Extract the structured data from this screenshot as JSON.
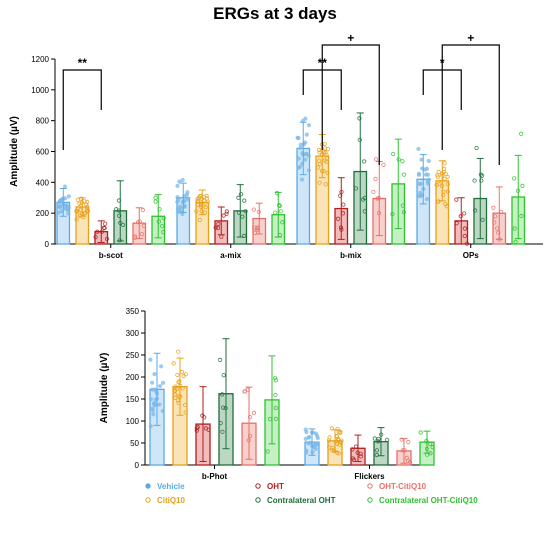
{
  "figure_title": "ERGs at 3 days",
  "chart_data": [
    {
      "type": "bar",
      "ylabel": "Amplitude (µV)",
      "ylim": [
        0,
        1200
      ],
      "yticks": [
        0,
        200,
        400,
        600,
        800,
        1000,
        1200
      ],
      "categories": [
        "b-scot",
        "a-mix",
        "b-mix",
        "OPs"
      ],
      "series": [
        {
          "name": "Vehicle",
          "values": [
            270,
            300,
            620,
            420
          ],
          "errors": [
            90,
            95,
            170,
            160
          ]
        },
        {
          "name": "CitiQ10",
          "values": [
            240,
            270,
            570,
            410
          ],
          "errors": [
            60,
            80,
            140,
            130
          ]
        },
        {
          "name": "OHT",
          "values": [
            80,
            150,
            230,
            150
          ],
          "errors": [
            70,
            90,
            200,
            150
          ]
        },
        {
          "name": "Contralateral OHT",
          "values": [
            215,
            215,
            470,
            295
          ],
          "errors": [
            195,
            170,
            380,
            260
          ]
        },
        {
          "name": "OHT-CitiQ10",
          "values": [
            135,
            165,
            295,
            200
          ],
          "errors": [
            100,
            100,
            240,
            170
          ]
        },
        {
          "name": "Contralateral OHT-CitiQ10",
          "values": [
            180,
            190,
            390,
            305
          ],
          "errors": [
            140,
            145,
            290,
            270
          ]
        }
      ],
      "annotations": [
        {
          "text": "**",
          "between": [
            "b-scot:Vehicle",
            "b-scot:OHT"
          ]
        },
        {
          "text": "**",
          "between": [
            "b-mix:Vehicle",
            "b-mix:OHT"
          ]
        },
        {
          "text": "+",
          "between": [
            "b-mix:CitiQ10",
            "b-mix:OHT-CitiQ10"
          ]
        },
        {
          "text": "*",
          "between": [
            "OPs:Vehicle",
            "OPs:OHT"
          ]
        },
        {
          "text": "+",
          "between": [
            "OPs:CitiQ10",
            "OPs:OHT-CitiQ10"
          ]
        }
      ]
    },
    {
      "type": "bar",
      "ylabel": "Amplitude (µV)",
      "ylim": [
        0,
        350
      ],
      "yticks": [
        0,
        50,
        100,
        150,
        200,
        250,
        300,
        350
      ],
      "categories": [
        "b-Phot",
        "Flickers"
      ],
      "series": [
        {
          "name": "Vehicle",
          "values": [
            172,
            52
          ],
          "errors": [
            82,
            30
          ]
        },
        {
          "name": "CitiQ10",
          "values": [
            178,
            55
          ],
          "errors": [
            65,
            25
          ]
        },
        {
          "name": "OHT",
          "values": [
            93,
            38
          ],
          "errors": [
            85,
            30
          ]
        },
        {
          "name": "Contralateral OHT",
          "values": [
            162,
            53
          ],
          "errors": [
            125,
            32
          ]
        },
        {
          "name": "OHT-CitiQ10",
          "values": [
            95,
            32
          ],
          "errors": [
            82,
            28
          ]
        },
        {
          "name": "Contralateral OHT-CitiQ10",
          "values": [
            148,
            52
          ],
          "errors": [
            100,
            25
          ]
        }
      ],
      "annotations": []
    }
  ],
  "legend": {
    "placement": "bottom",
    "entries": [
      {
        "name": "Vehicle",
        "color": "#5aaae6"
      },
      {
        "name": "OHT",
        "color": "#b01e1e"
      },
      {
        "name": "OHT-CitiQ10",
        "color": "#e8706a"
      },
      {
        "name": "CitiQ10",
        "color": "#e8a01a"
      },
      {
        "name": "Contralateral OHT",
        "color": "#1e6e3a"
      },
      {
        "name": "Contralateral OHT-CitiQ10",
        "color": "#2ec22e"
      }
    ]
  },
  "series_styles": [
    {
      "name": "Vehicle",
      "fill": "#cfe5f8",
      "stroke": "#5aaae6",
      "dot": "#7db9ea",
      "dotFilled": true
    },
    {
      "name": "CitiQ10",
      "fill": "#fbe3b8",
      "stroke": "#e8a01a",
      "dot": "#e8a01a",
      "dotFilled": false
    },
    {
      "name": "OHT",
      "fill": "#f2bcbc",
      "stroke": "#b01e1e",
      "dot": "#b01e1e",
      "dotFilled": false
    },
    {
      "name": "Contralateral OHT",
      "fill": "#bcd8c4",
      "stroke": "#1e6e3a",
      "dot": "#1e6e3a",
      "dotFilled": false
    },
    {
      "name": "OHT-CitiQ10",
      "fill": "#f8d0cc",
      "stroke": "#e8706a",
      "dot": "#e8706a",
      "dotFilled": false
    },
    {
      "name": "Contralateral OHT-CitiQ10",
      "fill": "#c4f0c4",
      "stroke": "#2ec22e",
      "dot": "#2ec22e",
      "dotFilled": false
    }
  ]
}
